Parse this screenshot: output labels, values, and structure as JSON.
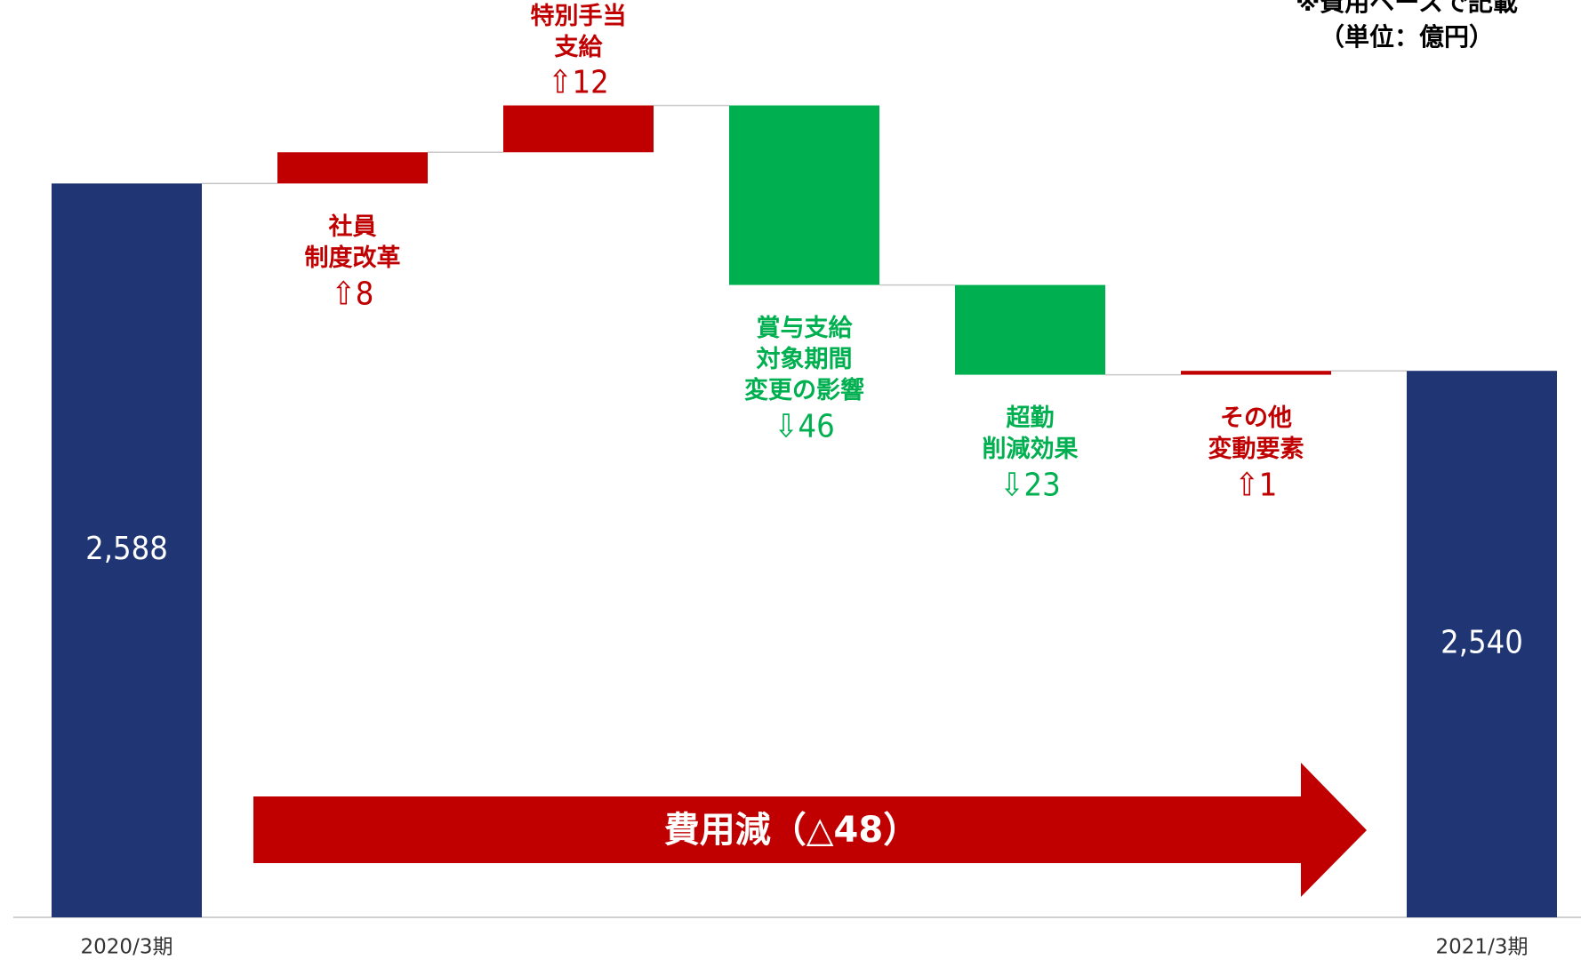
{
  "chart_data": {
    "type": "waterfall",
    "notes": [
      "※費用ベースで記載",
      "（単位：億円）"
    ],
    "categories": [
      "2020/3期",
      null,
      null,
      null,
      null,
      null,
      "2021/3期"
    ],
    "measure": [
      "total",
      "relative",
      "relative",
      "relative",
      "relative",
      "relative",
      "total"
    ],
    "values": [
      2588,
      8,
      12,
      -46,
      -23,
      1,
      2540
    ],
    "value_labels": [
      "2,588",
      "⇧8",
      "⇧12",
      "⇩46",
      "⇩23",
      "⇧1",
      "2,540"
    ],
    "step_names": [
      null,
      [
        "社員",
        "制度改革"
      ],
      [
        "特別手当",
        "支給"
      ],
      [
        "賞与支給",
        "対象期間",
        "変更の影響"
      ],
      [
        "超勤",
        "削減効果"
      ],
      [
        "その他",
        "変動要素"
      ],
      null
    ],
    "colors": {
      "total": "#1f3574",
      "increase": "#c00000",
      "decrease": "#00b050"
    },
    "arrow_label": "費用減（△48）",
    "ylim": [
      2400,
      2635
    ]
  }
}
